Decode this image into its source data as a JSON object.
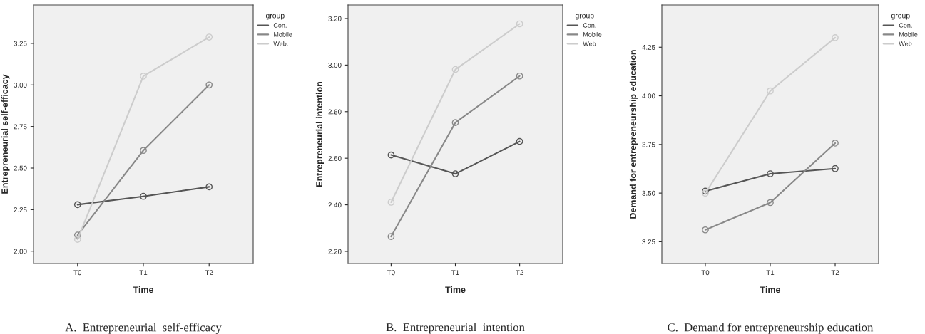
{
  "chart_data": [
    {
      "type": "line",
      "xlabel": "Time",
      "ylabel": "Entrepreneurial self-efficacy",
      "legend_title": "group",
      "legend": "right",
      "marker": "circle",
      "line_style": "solid",
      "grid": false,
      "categories": [
        "T0",
        "T1",
        "T2"
      ],
      "ylim": [
        1.926,
        3.481
      ],
      "yticks": [
        {
          "value": 2.0,
          "label": "2.00"
        },
        {
          "value": 2.25,
          "label": "2.25"
        },
        {
          "value": 2.5,
          "label": "2.50"
        },
        {
          "value": 2.75,
          "label": "2.75"
        },
        {
          "value": 3.0,
          "label": "3.00"
        },
        {
          "value": 3.25,
          "label": "3.25"
        }
      ],
      "annotations": [
        "A.  Entrepreneurial  self-efficacy"
      ],
      "series": [
        {
          "name": "Con.",
          "color": "#555555",
          "values": [
            2.28,
            2.33,
            2.387
          ]
        },
        {
          "name": "Mobile",
          "color": "#888888",
          "values": [
            2.097,
            2.606,
            3.0
          ]
        },
        {
          "name": "Web.",
          "color": "#cccccc",
          "values": [
            2.071,
            3.053,
            3.288
          ]
        }
      ]
    },
    {
      "type": "line",
      "xlabel": "Time",
      "ylabel": "Entrepreneurial intention",
      "legend_title": "group",
      "legend": "right",
      "marker": "circle",
      "line_style": "solid",
      "grid": false,
      "categories": [
        "T0",
        "T1",
        "T2"
      ],
      "ylim": [
        2.148,
        3.258
      ],
      "yticks": [
        {
          "value": 2.2,
          "label": "2.20"
        },
        {
          "value": 2.4,
          "label": "2.40"
        },
        {
          "value": 2.6,
          "label": "2.60"
        },
        {
          "value": 2.8,
          "label": "2.80"
        },
        {
          "value": 3.0,
          "label": "3.00"
        },
        {
          "value": 3.2,
          "label": "3.20"
        }
      ],
      "annotations": [
        "B.  Entrepreneurial  intention"
      ],
      "series": [
        {
          "name": "Con.",
          "color": "#555555",
          "values": [
            2.614,
            2.533,
            2.672
          ]
        },
        {
          "name": "Mobile",
          "color": "#888888",
          "values": [
            2.264,
            2.753,
            2.953
          ]
        },
        {
          "name": "Web",
          "color": "#cccccc",
          "values": [
            2.411,
            2.981,
            3.177
          ]
        }
      ]
    },
    {
      "type": "line",
      "xlabel": "Time",
      "ylabel": "Demand for entrepreneurship education",
      "legend_title": "group",
      "legend": "right",
      "marker": "circle",
      "line_style": "solid",
      "grid": false,
      "categories": [
        "T0",
        "T1",
        "T2"
      ],
      "ylim": [
        3.138,
        4.467
      ],
      "yticks": [
        {
          "value": 3.25,
          "label": "3.25"
        },
        {
          "value": 3.5,
          "label": "3.50"
        },
        {
          "value": 3.75,
          "label": "3.75"
        },
        {
          "value": 4.0,
          "label": "4.00"
        },
        {
          "value": 4.25,
          "label": "4.25"
        }
      ],
      "annotations": [
        "C.  Demand for entrepreneurship education"
      ],
      "series": [
        {
          "name": "Con.",
          "color": "#555555",
          "values": [
            3.51,
            3.599,
            3.626
          ]
        },
        {
          "name": "Mobile",
          "color": "#888888",
          "values": [
            3.311,
            3.451,
            3.757
          ]
        },
        {
          "name": "Web",
          "color": "#cccccc",
          "values": [
            3.499,
            4.025,
            4.299
          ]
        }
      ]
    }
  ]
}
